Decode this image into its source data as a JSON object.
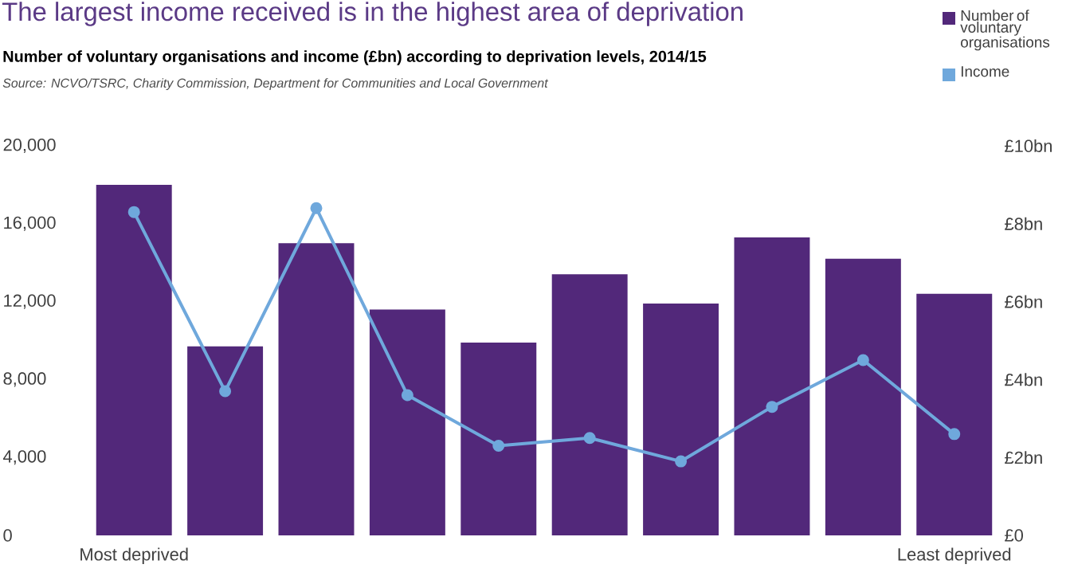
{
  "chart_data": {
    "type": "bar",
    "title": "The largest income received is in the highest area of deprivation",
    "subtitle": "Number of voluntary organisations and income (£bn) according to deprivation levels, 2014/15",
    "annotations": [
      "Source: NCVO/TSRC, Charity Commission, Department for Communities and Local Government"
    ],
    "categories": [
      "Most deprived",
      null,
      null,
      null,
      null,
      null,
      null,
      null,
      null,
      "Least deprived"
    ],
    "series": [
      {
        "name": "Number of voluntary organisations",
        "color": "#52287a",
        "values": [
          18000,
          9700,
          15000,
          11600,
          9900,
          13400,
          11900,
          15300,
          14200,
          12400
        ]
      },
      {
        "name": "Income",
        "type": "line",
        "axis": "y2",
        "color": "#6fa8dc",
        "marker": "circle",
        "values": [
          8.3,
          3.7,
          8.4,
          3.6,
          2.3,
          2.5,
          1.9,
          3.3,
          4.5,
          2.6
        ]
      }
    ],
    "ylim": [
      0,
      20000
    ],
    "yticks": [
      {
        "value": 0,
        "label": "0"
      },
      {
        "value": 4000,
        "label": "4,000"
      },
      {
        "value": 8000,
        "label": "8,000"
      },
      {
        "value": 12000,
        "label": "12,000"
      },
      {
        "value": 16000,
        "label": "16,000"
      },
      {
        "value": 20000,
        "label": "20,000"
      }
    ],
    "y2lim": [
      0,
      10
    ],
    "y2ticks": [
      {
        "value": 0,
        "label": "£0"
      },
      {
        "value": 2,
        "label": "£2bn"
      },
      {
        "value": 4,
        "label": "£4bn"
      },
      {
        "value": 6,
        "label": "£6bn"
      },
      {
        "value": 8,
        "label": "£8bn"
      },
      {
        "value": 10,
        "label": "£10bn"
      }
    ],
    "legend": "top right"
  }
}
